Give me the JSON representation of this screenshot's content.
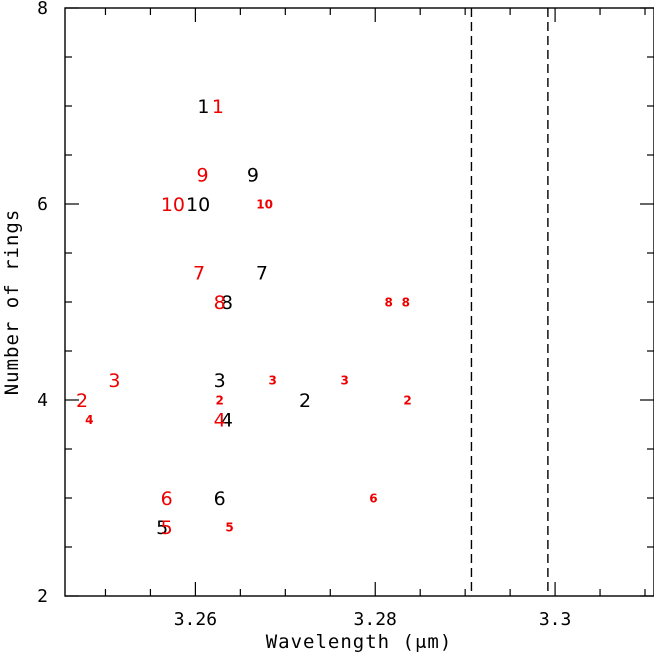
{
  "chart_data": {
    "type": "scatter",
    "title": "",
    "xlabel": "Wavelength (μm)",
    "ylabel": "Number of rings",
    "xlim": [
      3.2455,
      3.311
    ],
    "ylim": [
      2,
      8
    ],
    "x_ticks": [
      3.26,
      3.28,
      3.3
    ],
    "x_tick_labels": [
      "3.26",
      "3.28",
      "3.3"
    ],
    "y_ticks": [
      2,
      4,
      6,
      8
    ],
    "y_tick_labels": [
      "2",
      "4",
      "6",
      "8"
    ],
    "grid": false,
    "legend": "none",
    "colors": {
      "black": "#000000",
      "red": "#ee0000"
    },
    "reference_lines": [
      {
        "x": 3.2907,
        "style": "dashed"
      },
      {
        "x": 3.2992,
        "style": "dashed"
      }
    ],
    "series": [
      {
        "color": "black",
        "points": [
          {
            "label": "1",
            "x": 3.2609,
            "y": 7.0
          },
          {
            "label": "2",
            "x": 3.2722,
            "y": 4.0
          },
          {
            "label": "3",
            "x": 3.2627,
            "y": 4.2
          },
          {
            "label": "4",
            "x": 3.2635,
            "y": 3.8
          },
          {
            "label": "5",
            "x": 3.2563,
            "y": 2.7
          },
          {
            "label": "6",
            "x": 3.2627,
            "y": 3.0
          },
          {
            "label": "7",
            "x": 3.2674,
            "y": 5.3
          },
          {
            "label": "8",
            "x": 3.2635,
            "y": 5.0
          },
          {
            "label": "9",
            "x": 3.2664,
            "y": 6.3
          },
          {
            "label": "10",
            "x": 3.2603,
            "y": 6.0
          }
        ]
      },
      {
        "color": "red",
        "size": "large",
        "points": [
          {
            "label": "1",
            "x": 3.2625,
            "y": 7.0
          },
          {
            "label": "2",
            "x": 3.2474,
            "y": 4.0
          },
          {
            "label": "3",
            "x": 3.251,
            "y": 4.2
          },
          {
            "label": "4",
            "x": 3.2627,
            "y": 3.8
          },
          {
            "label": "5",
            "x": 3.2568,
            "y": 2.7
          },
          {
            "label": "6",
            "x": 3.2568,
            "y": 3.0
          },
          {
            "label": "7",
            "x": 3.2604,
            "y": 5.3
          },
          {
            "label": "8",
            "x": 3.2627,
            "y": 5.0
          },
          {
            "label": "9",
            "x": 3.2608,
            "y": 6.3
          },
          {
            "label": "10",
            "x": 3.2575,
            "y": 6.0
          }
        ]
      },
      {
        "color": "red",
        "size": "small",
        "points": [
          {
            "label": "2",
            "x": 3.2627,
            "y": 4.0
          },
          {
            "label": "2",
            "x": 3.2836,
            "y": 4.0
          },
          {
            "label": "3",
            "x": 3.2686,
            "y": 4.2
          },
          {
            "label": "3",
            "x": 3.2766,
            "y": 4.2
          },
          {
            "label": "4",
            "x": 3.2482,
            "y": 3.8
          },
          {
            "label": "5",
            "x": 3.2638,
            "y": 2.7
          },
          {
            "label": "6",
            "x": 3.2798,
            "y": 3.0
          },
          {
            "label": "8",
            "x": 3.2815,
            "y": 5.0
          },
          {
            "label": "8",
            "x": 3.2834,
            "y": 5.0
          },
          {
            "label": "10",
            "x": 3.2677,
            "y": 6.0
          }
        ]
      }
    ]
  }
}
